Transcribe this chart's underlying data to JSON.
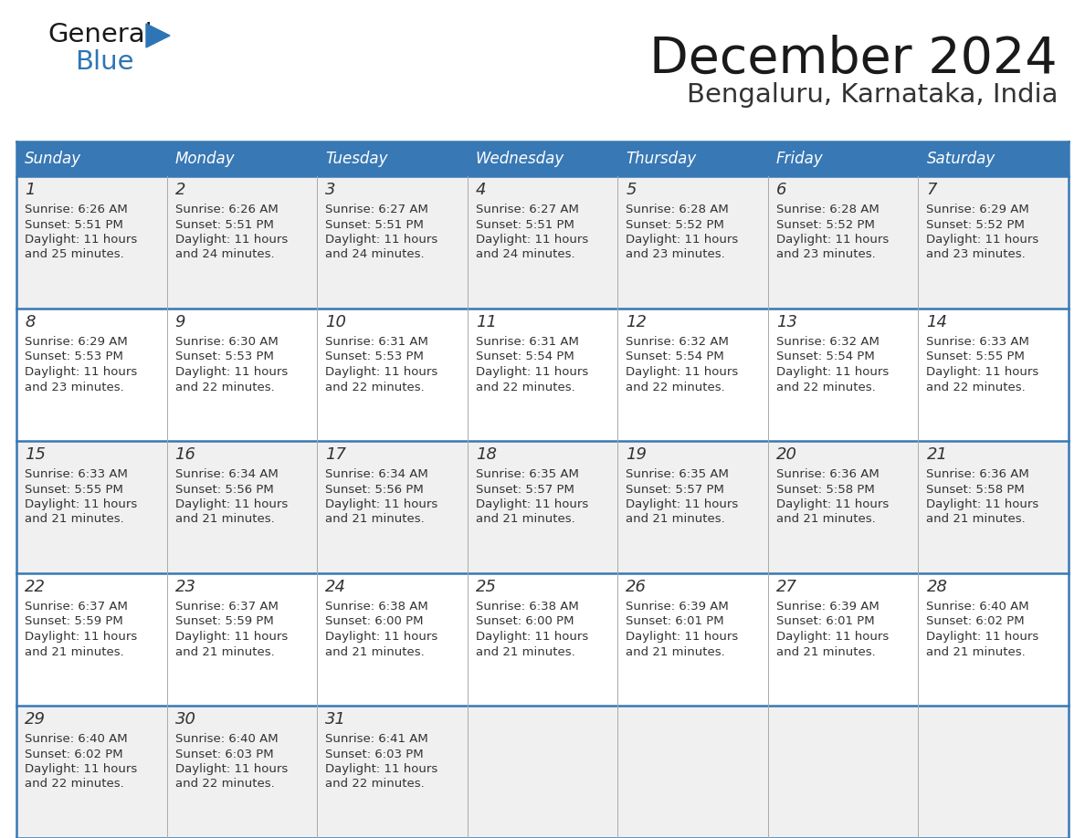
{
  "title": "December 2024",
  "subtitle": "Bengaluru, Karnataka, India",
  "days_of_week": [
    "Sunday",
    "Monday",
    "Tuesday",
    "Wednesday",
    "Thursday",
    "Friday",
    "Saturday"
  ],
  "header_bg_color": "#3878B4",
  "header_text_color": "#FFFFFF",
  "row_bg_even": "#F0F0F0",
  "row_bg_odd": "#FFFFFF",
  "cell_border_color": "#3878B4",
  "divider_color": "#AAAAAA",
  "day_number_color": "#333333",
  "info_text_color": "#333333",
  "title_color": "#1a1a1a",
  "subtitle_color": "#333333",
  "logo_general_color": "#1a1a1a",
  "logo_blue_color": "#2E75B6",
  "calendar_data": [
    [
      {
        "day": 1,
        "sunrise": "6:26 AM",
        "sunset": "5:51 PM",
        "daylight_hours": 11,
        "daylight_minutes": 25
      },
      {
        "day": 2,
        "sunrise": "6:26 AM",
        "sunset": "5:51 PM",
        "daylight_hours": 11,
        "daylight_minutes": 24
      },
      {
        "day": 3,
        "sunrise": "6:27 AM",
        "sunset": "5:51 PM",
        "daylight_hours": 11,
        "daylight_minutes": 24
      },
      {
        "day": 4,
        "sunrise": "6:27 AM",
        "sunset": "5:51 PM",
        "daylight_hours": 11,
        "daylight_minutes": 24
      },
      {
        "day": 5,
        "sunrise": "6:28 AM",
        "sunset": "5:52 PM",
        "daylight_hours": 11,
        "daylight_minutes": 23
      },
      {
        "day": 6,
        "sunrise": "6:28 AM",
        "sunset": "5:52 PM",
        "daylight_hours": 11,
        "daylight_minutes": 23
      },
      {
        "day": 7,
        "sunrise": "6:29 AM",
        "sunset": "5:52 PM",
        "daylight_hours": 11,
        "daylight_minutes": 23
      }
    ],
    [
      {
        "day": 8,
        "sunrise": "6:29 AM",
        "sunset": "5:53 PM",
        "daylight_hours": 11,
        "daylight_minutes": 23
      },
      {
        "day": 9,
        "sunrise": "6:30 AM",
        "sunset": "5:53 PM",
        "daylight_hours": 11,
        "daylight_minutes": 22
      },
      {
        "day": 10,
        "sunrise": "6:31 AM",
        "sunset": "5:53 PM",
        "daylight_hours": 11,
        "daylight_minutes": 22
      },
      {
        "day": 11,
        "sunrise": "6:31 AM",
        "sunset": "5:54 PM",
        "daylight_hours": 11,
        "daylight_minutes": 22
      },
      {
        "day": 12,
        "sunrise": "6:32 AM",
        "sunset": "5:54 PM",
        "daylight_hours": 11,
        "daylight_minutes": 22
      },
      {
        "day": 13,
        "sunrise": "6:32 AM",
        "sunset": "5:54 PM",
        "daylight_hours": 11,
        "daylight_minutes": 22
      },
      {
        "day": 14,
        "sunrise": "6:33 AM",
        "sunset": "5:55 PM",
        "daylight_hours": 11,
        "daylight_minutes": 22
      }
    ],
    [
      {
        "day": 15,
        "sunrise": "6:33 AM",
        "sunset": "5:55 PM",
        "daylight_hours": 11,
        "daylight_minutes": 21
      },
      {
        "day": 16,
        "sunrise": "6:34 AM",
        "sunset": "5:56 PM",
        "daylight_hours": 11,
        "daylight_minutes": 21
      },
      {
        "day": 17,
        "sunrise": "6:34 AM",
        "sunset": "5:56 PM",
        "daylight_hours": 11,
        "daylight_minutes": 21
      },
      {
        "day": 18,
        "sunrise": "6:35 AM",
        "sunset": "5:57 PM",
        "daylight_hours": 11,
        "daylight_minutes": 21
      },
      {
        "day": 19,
        "sunrise": "6:35 AM",
        "sunset": "5:57 PM",
        "daylight_hours": 11,
        "daylight_minutes": 21
      },
      {
        "day": 20,
        "sunrise": "6:36 AM",
        "sunset": "5:58 PM",
        "daylight_hours": 11,
        "daylight_minutes": 21
      },
      {
        "day": 21,
        "sunrise": "6:36 AM",
        "sunset": "5:58 PM",
        "daylight_hours": 11,
        "daylight_minutes": 21
      }
    ],
    [
      {
        "day": 22,
        "sunrise": "6:37 AM",
        "sunset": "5:59 PM",
        "daylight_hours": 11,
        "daylight_minutes": 21
      },
      {
        "day": 23,
        "sunrise": "6:37 AM",
        "sunset": "5:59 PM",
        "daylight_hours": 11,
        "daylight_minutes": 21
      },
      {
        "day": 24,
        "sunrise": "6:38 AM",
        "sunset": "6:00 PM",
        "daylight_hours": 11,
        "daylight_minutes": 21
      },
      {
        "day": 25,
        "sunrise": "6:38 AM",
        "sunset": "6:00 PM",
        "daylight_hours": 11,
        "daylight_minutes": 21
      },
      {
        "day": 26,
        "sunrise": "6:39 AM",
        "sunset": "6:01 PM",
        "daylight_hours": 11,
        "daylight_minutes": 21
      },
      {
        "day": 27,
        "sunrise": "6:39 AM",
        "sunset": "6:01 PM",
        "daylight_hours": 11,
        "daylight_minutes": 21
      },
      {
        "day": 28,
        "sunrise": "6:40 AM",
        "sunset": "6:02 PM",
        "daylight_hours": 11,
        "daylight_minutes": 21
      }
    ],
    [
      {
        "day": 29,
        "sunrise": "6:40 AM",
        "sunset": "6:02 PM",
        "daylight_hours": 11,
        "daylight_minutes": 22
      },
      {
        "day": 30,
        "sunrise": "6:40 AM",
        "sunset": "6:03 PM",
        "daylight_hours": 11,
        "daylight_minutes": 22
      },
      {
        "day": 31,
        "sunrise": "6:41 AM",
        "sunset": "6:03 PM",
        "daylight_hours": 11,
        "daylight_minutes": 22
      },
      null,
      null,
      null,
      null
    ]
  ]
}
